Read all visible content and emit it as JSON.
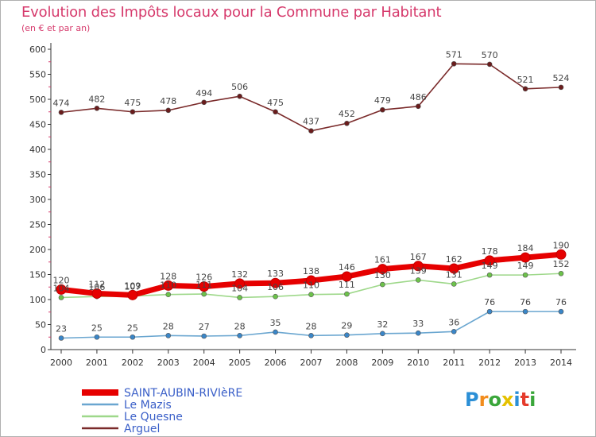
{
  "title": "Evolution des Impôts locaux pour la Commune par Habitant",
  "subtitle": "(en € et par an)",
  "logo": {
    "text": "Proxiti",
    "letter_colors": [
      "#2b8fd6",
      "#f28c1c",
      "#3aa63a",
      "#e5c100",
      "#2b8fd6",
      "#e53b2c",
      "#3aa63a"
    ]
  },
  "chart_data": {
    "type": "line",
    "x": [
      "2000",
      "2001",
      "2002",
      "2003",
      "2004",
      "2005",
      "2006",
      "2007",
      "2008",
      "2009",
      "2010",
      "2011",
      "2012",
      "2013",
      "2014"
    ],
    "ylim": [
      0,
      600
    ],
    "yticks": [
      0,
      50,
      100,
      150,
      200,
      250,
      300,
      350,
      400,
      450,
      500,
      550,
      600
    ],
    "grid": false,
    "legend_position": "bottom-left",
    "series": [
      {
        "name": "SAINT-AUBIN-RIVIèRE",
        "color": "#e60000",
        "marker_color": "#e60000",
        "width": "thick",
        "values": [
          120,
          112,
          109,
          128,
          126,
          132,
          133,
          138,
          146,
          161,
          167,
          162,
          178,
          184,
          190
        ],
        "labels": [
          "120",
          "112",
          "109",
          "128",
          "126",
          "132",
          "133",
          "138",
          "146",
          "161",
          "167",
          "162",
          "178",
          "184",
          "190"
        ],
        "label_position": "above"
      },
      {
        "name": "Le Mazis",
        "color": "#6aa6d0",
        "marker_color": "#3a86c8",
        "width": "thin",
        "values": [
          23,
          25,
          25,
          28,
          27,
          28,
          35,
          28,
          29,
          32,
          33,
          36,
          76,
          76,
          76
        ],
        "labels": [
          "23",
          "25",
          "25",
          "28",
          "27",
          "28",
          "35",
          "28",
          "29",
          "32",
          "33",
          "36",
          "76",
          "76",
          "76"
        ],
        "label_position": "above"
      },
      {
        "name": "Le Quesne",
        "color": "#9ed88a",
        "marker_color": "#6cc24a",
        "width": "thin",
        "values": [
          104,
          106,
          107,
          110,
          111,
          104,
          106,
          110,
          111,
          130,
          139,
          131,
          149,
          149,
          152
        ],
        "labels": [
          "104",
          "106",
          "107",
          "110",
          "111",
          "104",
          "106",
          "110",
          "111",
          "130",
          "139",
          "131",
          "149",
          "149",
          "152"
        ],
        "label_position": "above"
      },
      {
        "name": "Arguel",
        "color": "#7a2a2a",
        "marker_color": "#6a1c1c",
        "width": "thin",
        "values": [
          474,
          482,
          475,
          478,
          494,
          506,
          475,
          437,
          452,
          479,
          486,
          571,
          570,
          521,
          524
        ],
        "labels": [
          "474",
          "482",
          "475",
          "478",
          "494",
          "506",
          "475",
          "437",
          "452",
          "479",
          "486",
          "571",
          "570",
          "521",
          "524"
        ],
        "label_position": "above"
      }
    ]
  }
}
